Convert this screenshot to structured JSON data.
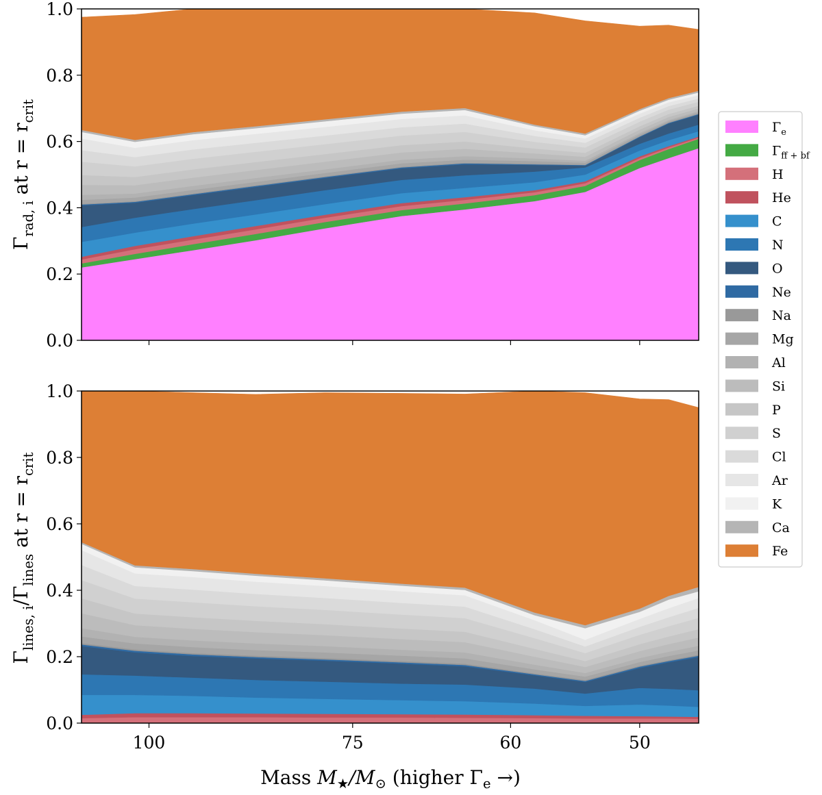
{
  "chart_data": [
    {
      "type": "area",
      "stacked": true,
      "panel": "top",
      "x": [
        110,
        102,
        94,
        86,
        78,
        70,
        64,
        58,
        54,
        50,
        48,
        46
      ],
      "x_tick_values": [
        100,
        75,
        60,
        50
      ],
      "x_tick_labels": [
        "100",
        "75",
        "60",
        "50"
      ],
      "xlabel": "Mass M★/M⊙ (higher Γe →)",
      "xlabel_parts": {
        "a": "Mass ",
        "b": "M",
        "c": "★",
        "d": "/M",
        "e": "⊙",
        "f": "  (higher Γ",
        "g": "e",
        "h": " →)"
      },
      "ylabel_parts": {
        "a": "Γ",
        "b": "rad, i",
        "c": " at r = r",
        "d": "crit"
      },
      "ylim": [
        0,
        1.0
      ],
      "y_ticks": [
        0.0,
        0.2,
        0.4,
        0.6,
        0.8,
        1.0
      ],
      "y_tick_labels": [
        "0.0",
        "0.2",
        "0.4",
        "0.6",
        "0.8",
        "1.0"
      ],
      "series": [
        {
          "name": "Γe",
          "values": [
            0.22,
            0.245,
            0.272,
            0.302,
            0.338,
            0.375,
            0.395,
            0.42,
            0.448,
            0.52,
            0.55,
            0.58
          ]
        },
        {
          "name": "Γff+bf",
          "values": [
            0.012,
            0.016,
            0.018,
            0.019,
            0.019,
            0.018,
            0.018,
            0.018,
            0.018,
            0.024,
            0.027,
            0.028
          ]
        },
        {
          "name": "H",
          "values": [
            0.012,
            0.014,
            0.014,
            0.014,
            0.013,
            0.012,
            0.011,
            0.009,
            0.008,
            0.006,
            0.005,
            0.004
          ]
        },
        {
          "name": "He",
          "values": [
            0.008,
            0.01,
            0.01,
            0.01,
            0.009,
            0.009,
            0.008,
            0.006,
            0.006,
            0.005,
            0.004,
            0.003
          ]
        },
        {
          "name": "C",
          "values": [
            0.045,
            0.04,
            0.038,
            0.035,
            0.032,
            0.03,
            0.028,
            0.024,
            0.02,
            0.018,
            0.018,
            0.016
          ]
        },
        {
          "name": "N",
          "values": [
            0.045,
            0.045,
            0.044,
            0.043,
            0.042,
            0.04,
            0.038,
            0.032,
            0.022,
            0.02,
            0.02,
            0.02
          ]
        },
        {
          "name": "O",
          "values": [
            0.065,
            0.045,
            0.042,
            0.04,
            0.037,
            0.035,
            0.033,
            0.02,
            0.005,
            0.02,
            0.03,
            0.03
          ]
        },
        {
          "name": "Ne",
          "values": [
            0.003,
            0.003,
            0.003,
            0.003,
            0.003,
            0.003,
            0.003,
            0.002,
            0.002,
            0.002,
            0.002,
            0.002
          ]
        },
        {
          "name": "Na",
          "values": [
            0.002,
            0.002,
            0.002,
            0.002,
            0.002,
            0.002,
            0.002,
            0.002,
            0.001,
            0.001,
            0.001,
            0.001
          ]
        },
        {
          "name": "Mg",
          "values": [
            0.012,
            0.011,
            0.011,
            0.01,
            0.01,
            0.01,
            0.009,
            0.008,
            0.006,
            0.005,
            0.004,
            0.004
          ]
        },
        {
          "name": "Al",
          "values": [
            0.015,
            0.012,
            0.012,
            0.012,
            0.011,
            0.011,
            0.011,
            0.008,
            0.006,
            0.005,
            0.004,
            0.004
          ]
        },
        {
          "name": "Si",
          "values": [
            0.03,
            0.025,
            0.025,
            0.024,
            0.023,
            0.022,
            0.022,
            0.015,
            0.012,
            0.01,
            0.009,
            0.008
          ]
        },
        {
          "name": "P",
          "values": [
            0.03,
            0.025,
            0.025,
            0.024,
            0.023,
            0.022,
            0.022,
            0.015,
            0.012,
            0.01,
            0.009,
            0.008
          ]
        },
        {
          "name": "S",
          "values": [
            0.04,
            0.032,
            0.032,
            0.031,
            0.03,
            0.029,
            0.029,
            0.02,
            0.016,
            0.014,
            0.013,
            0.012
          ]
        },
        {
          "name": "Cl",
          "values": [
            0.035,
            0.028,
            0.028,
            0.027,
            0.026,
            0.025,
            0.025,
            0.018,
            0.014,
            0.012,
            0.011,
            0.01
          ]
        },
        {
          "name": "Ar",
          "values": [
            0.035,
            0.028,
            0.028,
            0.027,
            0.026,
            0.025,
            0.025,
            0.017,
            0.013,
            0.012,
            0.011,
            0.01
          ]
        },
        {
          "name": "K",
          "values": [
            0.02,
            0.018,
            0.018,
            0.017,
            0.017,
            0.016,
            0.016,
            0.012,
            0.01,
            0.009,
            0.008,
            0.008
          ]
        },
        {
          "name": "Ca",
          "values": [
            0.006,
            0.006,
            0.006,
            0.006,
            0.006,
            0.006,
            0.006,
            0.005,
            0.005,
            0.005,
            0.005,
            0.005
          ]
        },
        {
          "name": "Fe",
          "values": [
            0.34,
            0.378,
            0.376,
            0.363,
            0.35,
            0.34,
            0.334,
            0.337,
            0.34,
            0.25,
            0.22,
            0.185
          ]
        }
      ]
    },
    {
      "type": "area",
      "stacked": true,
      "panel": "bottom",
      "x": [
        110,
        102,
        94,
        86,
        78,
        70,
        64,
        58,
        54,
        50,
        48,
        46
      ],
      "x_tick_values": [
        100,
        75,
        60,
        50
      ],
      "x_tick_labels": [
        "100",
        "75",
        "60",
        "50"
      ],
      "xlabel": "Mass M★/M⊙ (higher Γe →)",
      "ylabel_parts": {
        "a": "Γ",
        "b": "lines, i",
        "c": "/Γ",
        "d": "lines",
        "e": " at r = r",
        "f": "crit"
      },
      "ylim": [
        0,
        1.0
      ],
      "y_ticks": [
        0.0,
        0.2,
        0.4,
        0.6,
        0.8,
        1.0
      ],
      "y_tick_labels": [
        "0.0",
        "0.2",
        "0.4",
        "0.6",
        "0.8",
        "1.0"
      ],
      "series": [
        {
          "name": "Γe",
          "values": [
            0,
            0,
            0,
            0,
            0,
            0,
            0,
            0,
            0,
            0,
            0,
            0
          ]
        },
        {
          "name": "Γff+bf",
          "values": [
            0,
            0,
            0,
            0,
            0,
            0,
            0,
            0,
            0,
            0,
            0,
            0
          ]
        },
        {
          "name": "H",
          "values": [
            0.015,
            0.018,
            0.018,
            0.018,
            0.017,
            0.017,
            0.016,
            0.015,
            0.014,
            0.014,
            0.014,
            0.013
          ]
        },
        {
          "name": "He",
          "values": [
            0.01,
            0.012,
            0.012,
            0.011,
            0.011,
            0.01,
            0.01,
            0.009,
            0.008,
            0.007,
            0.006,
            0.006
          ]
        },
        {
          "name": "C",
          "values": [
            0.06,
            0.055,
            0.052,
            0.048,
            0.045,
            0.042,
            0.04,
            0.035,
            0.03,
            0.035,
            0.033,
            0.03
          ]
        },
        {
          "name": "N",
          "values": [
            0.062,
            0.058,
            0.055,
            0.053,
            0.052,
            0.05,
            0.05,
            0.045,
            0.037,
            0.05,
            0.05,
            0.05
          ]
        },
        {
          "name": "O",
          "values": [
            0.085,
            0.07,
            0.065,
            0.065,
            0.063,
            0.06,
            0.055,
            0.04,
            0.035,
            0.06,
            0.08,
            0.1
          ]
        },
        {
          "name": "Ne",
          "values": [
            0.005,
            0.005,
            0.005,
            0.004,
            0.004,
            0.004,
            0.004,
            0.003,
            0.003,
            0.004,
            0.004,
            0.004
          ]
        },
        {
          "name": "Na",
          "values": [
            0.004,
            0.004,
            0.004,
            0.004,
            0.004,
            0.004,
            0.004,
            0.003,
            0.003,
            0.003,
            0.003,
            0.003
          ]
        },
        {
          "name": "Mg",
          "values": [
            0.02,
            0.018,
            0.018,
            0.017,
            0.017,
            0.016,
            0.016,
            0.012,
            0.01,
            0.011,
            0.012,
            0.013
          ]
        },
        {
          "name": "Al",
          "values": [
            0.025,
            0.02,
            0.02,
            0.02,
            0.019,
            0.018,
            0.018,
            0.014,
            0.011,
            0.012,
            0.013,
            0.014
          ]
        },
        {
          "name": "Si",
          "values": [
            0.045,
            0.035,
            0.035,
            0.034,
            0.033,
            0.032,
            0.031,
            0.024,
            0.018,
            0.021,
            0.023,
            0.025
          ]
        },
        {
          "name": "P",
          "values": [
            0.045,
            0.035,
            0.035,
            0.034,
            0.033,
            0.032,
            0.031,
            0.024,
            0.018,
            0.021,
            0.023,
            0.025
          ]
        },
        {
          "name": "S",
          "values": [
            0.055,
            0.045,
            0.045,
            0.044,
            0.043,
            0.042,
            0.041,
            0.032,
            0.024,
            0.028,
            0.031,
            0.034
          ]
        },
        {
          "name": "Cl",
          "values": [
            0.045,
            0.038,
            0.038,
            0.037,
            0.036,
            0.035,
            0.035,
            0.027,
            0.02,
            0.024,
            0.027,
            0.03
          ]
        },
        {
          "name": "Ar",
          "values": [
            0.045,
            0.038,
            0.038,
            0.037,
            0.036,
            0.035,
            0.034,
            0.027,
            0.02,
            0.024,
            0.027,
            0.03
          ]
        },
        {
          "name": "K",
          "values": [
            0.019,
            0.018,
            0.018,
            0.018,
            0.017,
            0.017,
            0.016,
            0.015,
            0.035,
            0.021,
            0.026,
            0.02
          ]
        },
        {
          "name": "Ca",
          "values": [
            0.005,
            0.006,
            0.006,
            0.006,
            0.006,
            0.006,
            0.007,
            0.008,
            0.009,
            0.01,
            0.011,
            0.013
          ]
        },
        {
          "name": "Fe",
          "values": [
            0.455,
            0.525,
            0.531,
            0.54,
            0.559,
            0.573,
            0.583,
            0.697,
            0.7,
            0.631,
            0.591,
            0.54
          ]
        }
      ]
    }
  ],
  "legend": {
    "placement": "right",
    "items": [
      {
        "name": "Γe",
        "base": "Γ",
        "sub": "e",
        "color": "#ff80ff"
      },
      {
        "name": "Γff+bf",
        "base": "Γ",
        "sub": "ff + bf",
        "color": "#44aa44"
      },
      {
        "name": "H",
        "base": "H",
        "sub": "",
        "color": "#d4707a"
      },
      {
        "name": "He",
        "base": "He",
        "sub": "",
        "color": "#c0525e"
      },
      {
        "name": "C",
        "base": "C",
        "sub": "",
        "color": "#3590cc"
      },
      {
        "name": "N",
        "base": "N",
        "sub": "",
        "color": "#2d77b3"
      },
      {
        "name": "O",
        "base": "O",
        "sub": "",
        "color": "#34597f"
      },
      {
        "name": "Ne",
        "base": "Ne",
        "sub": "",
        "color": "#2f6aa3"
      },
      {
        "name": "Na",
        "base": "Na",
        "sub": "",
        "color": "#999999"
      },
      {
        "name": "Mg",
        "base": "Mg",
        "sub": "",
        "color": "#a6a6a6"
      },
      {
        "name": "Al",
        "base": "Al",
        "sub": "",
        "color": "#b2b2b2"
      },
      {
        "name": "Si",
        "base": "Si",
        "sub": "",
        "color": "#bcbcbc"
      },
      {
        "name": "P",
        "base": "P",
        "sub": "",
        "color": "#c6c6c6"
      },
      {
        "name": "S",
        "base": "S",
        "sub": "",
        "color": "#d0d0d0"
      },
      {
        "name": "Cl",
        "base": "Cl",
        "sub": "",
        "color": "#dadada"
      },
      {
        "name": "Ar",
        "base": "Ar",
        "sub": "",
        "color": "#e6e6e6"
      },
      {
        "name": "K",
        "base": "K",
        "sub": "",
        "color": "#f1f1f1"
      },
      {
        "name": "Ca",
        "base": "Ca",
        "sub": "",
        "color": "#b5b5b5"
      },
      {
        "name": "Fe",
        "base": "Fe",
        "sub": "",
        "color": "#dd7f35"
      }
    ]
  }
}
